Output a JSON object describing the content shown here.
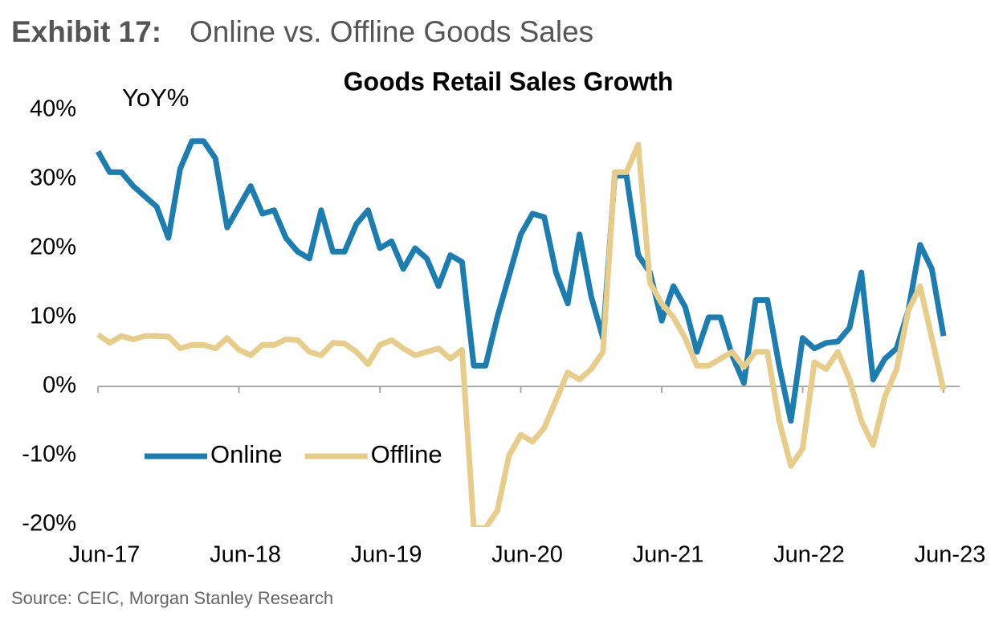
{
  "exhibit": "Exhibit 17:",
  "header": "Online vs. Offline Goods Sales",
  "source": "Source: CEIC, Morgan Stanley Research",
  "chart_data": {
    "type": "line",
    "title": "Goods Retail Sales Growth",
    "y_label": "YoY%",
    "categories": [
      "Jun-17",
      null,
      null,
      null,
      null,
      null,
      null,
      null,
      null,
      null,
      null,
      null,
      "Jun-18",
      null,
      null,
      null,
      null,
      null,
      null,
      null,
      null,
      null,
      null,
      null,
      "Jun-19",
      null,
      null,
      null,
      null,
      null,
      null,
      null,
      null,
      null,
      null,
      null,
      "Jun-20",
      null,
      null,
      null,
      null,
      null,
      null,
      null,
      null,
      null,
      null,
      null,
      "Jun-21",
      null,
      null,
      null,
      null,
      null,
      null,
      null,
      null,
      null,
      null,
      null,
      "Jun-22",
      null,
      null,
      null,
      null,
      null,
      null,
      null,
      null,
      null,
      null,
      null,
      "Jun-23"
    ],
    "series": [
      {
        "name": "Online",
        "color": "#1b7db0",
        "values": [
          34,
          31,
          31,
          29,
          27.5,
          26,
          21.5,
          31.5,
          35.5,
          35.5,
          33,
          23,
          26,
          29,
          25,
          25.5,
          21.5,
          19.5,
          18.5,
          25.5,
          19.5,
          19.5,
          23.5,
          25.5,
          20,
          21,
          17,
          20,
          18.5,
          14.5,
          19,
          18,
          3,
          3,
          10,
          16,
          22,
          25,
          24.5,
          16.5,
          12,
          22,
          13,
          7,
          30.5,
          30.5,
          19,
          16.5,
          9.5,
          14.5,
          11.5,
          5,
          10,
          10,
          4.5,
          0.5,
          12.5,
          12.5,
          3,
          -5,
          7,
          5.5,
          6.3,
          6.5,
          8.5,
          16.5,
          1,
          4,
          5.5,
          11,
          20.5,
          17,
          7.3
        ]
      },
      {
        "name": "Offline",
        "color": "#e8cd8a",
        "values": [
          7.5,
          6.3,
          7.3,
          6.8,
          7.3,
          7.3,
          7.2,
          5.5,
          6,
          6,
          5.5,
          7,
          5.3,
          4.5,
          6,
          6,
          6.8,
          6.7,
          5,
          4.5,
          6.3,
          6.2,
          5,
          3.2,
          6,
          6.7,
          5.5,
          4.5,
          5,
          5.5,
          4,
          5.3,
          -20.5,
          -20.5,
          -18,
          -10,
          -7,
          -8,
          -6,
          -2,
          2,
          1,
          2.5,
          5,
          31,
          31,
          35,
          15,
          12,
          10,
          7,
          3,
          3,
          4,
          5,
          2.8,
          5,
          5,
          -5,
          -11.5,
          -9,
          3.5,
          2.5,
          5,
          1,
          -5,
          -8.5,
          -1.5,
          2.5,
          11,
          14.5,
          7,
          -0.5
        ]
      }
    ],
    "ylim": [
      -20,
      40
    ],
    "yticks": [
      {
        "value": -20,
        "label": "-20%"
      },
      {
        "value": -10,
        "label": "-10%"
      },
      {
        "value": 0,
        "label": "0%"
      },
      {
        "value": 10,
        "label": "10%"
      },
      {
        "value": 20,
        "label": "20%"
      },
      {
        "value": 30,
        "label": "30%"
      },
      {
        "value": 40,
        "label": "40%"
      }
    ],
    "grid": false,
    "legend": "lower-left"
  }
}
